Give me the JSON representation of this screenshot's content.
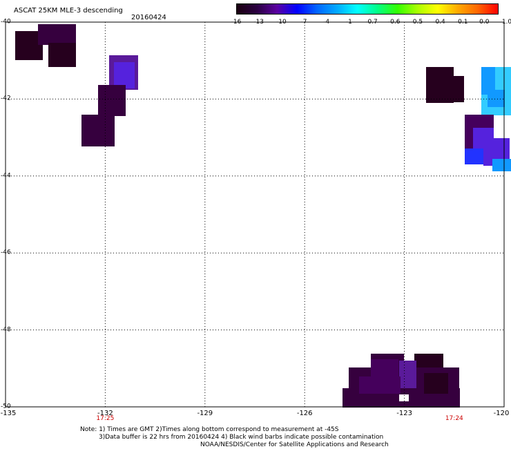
{
  "header": {
    "title": "ASCAT 25KM MLE-3 descending",
    "date": "20160424"
  },
  "colorbar": {
    "labels": [
      "-16",
      "-13",
      "-10",
      "-7",
      "-4",
      "-1",
      "-0.7",
      "-0.6",
      "-0.5",
      "-0.4",
      "-0.1",
      "0.0",
      "1.0"
    ],
    "colors": [
      "#1a0010",
      "#2a0040",
      "#5a00a0",
      "#0000ff",
      "#0066ff",
      "#00aaff",
      "#00ffff",
      "#00ff88",
      "#33ff00",
      "#aaff00",
      "#ffff00",
      "#ffaa00",
      "#ff6600",
      "#ff0000"
    ]
  },
  "map": {
    "lon_ticks": [
      "-135",
      "-132",
      "-129",
      "-126",
      "-123",
      "-120"
    ],
    "lat_ticks": [
      "-40",
      "-42",
      "-44",
      "-46",
      "-48",
      "-50"
    ],
    "time_labels": [
      {
        "text": "17:25",
        "lon": -132
      },
      {
        "text": "17:24",
        "lon": -121.5
      }
    ],
    "swath_colors": {
      "darkest": "#26001e",
      "dark": "#36003e",
      "medium": "#45005c",
      "violet": "#5a1a9a",
      "blue_violet": "#5522dd",
      "blue": "#2233ff",
      "light_blue": "#1199ff",
      "cyan": "#33ccff"
    }
  },
  "notes": {
    "line1": "Note: 1) Times are GMT 2)Times along bottom correspond to measurement at -45S",
    "line2": "3)Data buffer is 22 hrs from 20160424 4) Black wind barbs indicate possible contamination",
    "line3": "NOAA/NESDIS/Center for Satellite Applications and Research"
  }
}
